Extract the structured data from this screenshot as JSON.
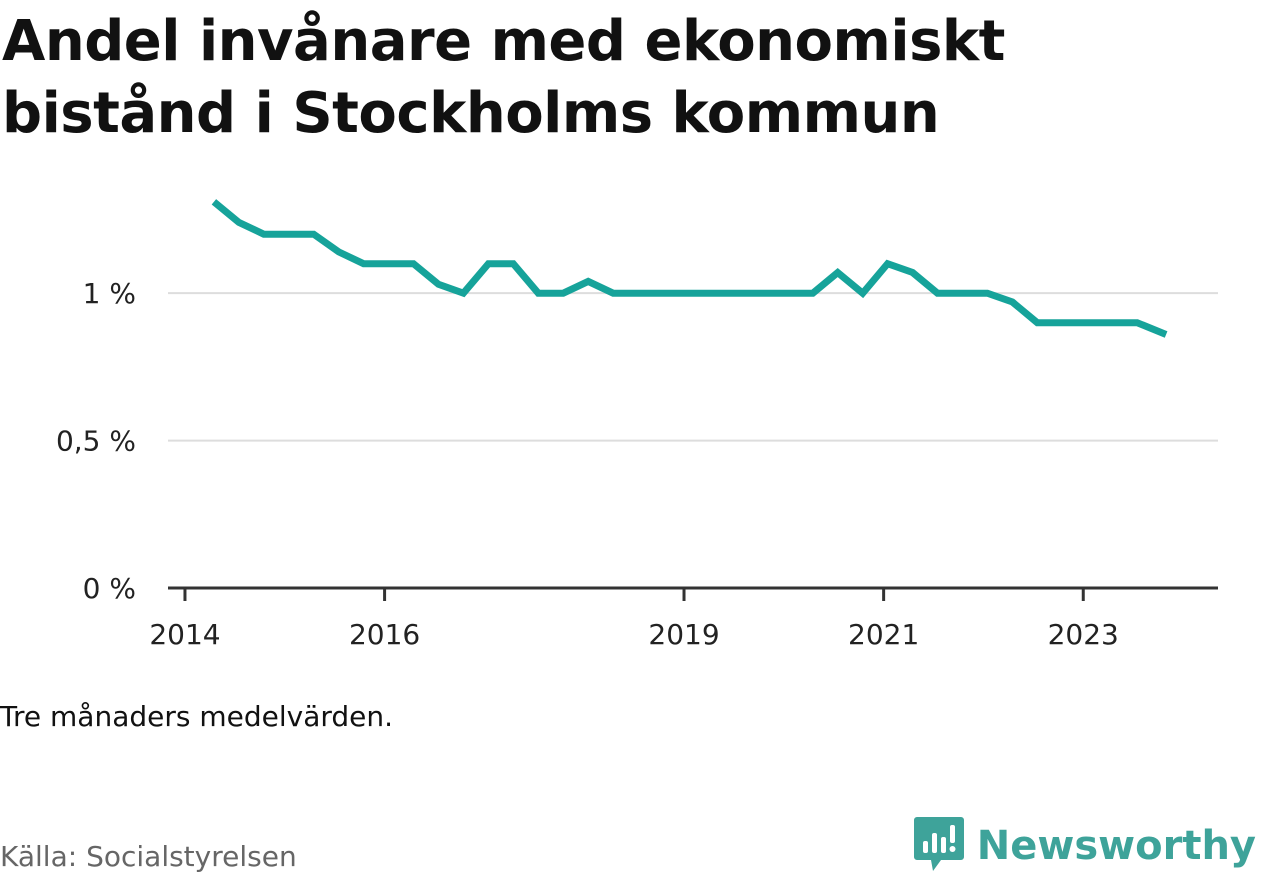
{
  "title": "Andel invånare med ekonomiskt bistånd i Stockholms kommun",
  "note": "Tre månaders medelvärden.",
  "source": "Källa: Socialstyrelsen",
  "brand": {
    "name": "Newsworthy",
    "icon": "newsworthy-logo-icon",
    "color": "#3ea39a"
  },
  "colors": {
    "line": "#16a39a",
    "grid": "#dddddd",
    "axis": "#333333"
  },
  "chart_data": {
    "type": "line",
    "title": "Andel invånare med ekonomiskt bistånd i Stockholms kommun",
    "xlabel": "",
    "ylabel": "",
    "y_ticks": [
      {
        "value": 0,
        "label": "0 %"
      },
      {
        "value": 0.5,
        "label": "0,5 %"
      },
      {
        "value": 1.0,
        "label": "1 %"
      }
    ],
    "x_ticks": [
      {
        "value": 2014.0,
        "label": "2014"
      },
      {
        "value": 2016.0,
        "label": "2016"
      },
      {
        "value": 2019.0,
        "label": "2019"
      },
      {
        "value": 2021.0,
        "label": "2021"
      },
      {
        "value": 2023.0,
        "label": "2023"
      }
    ],
    "ylim": [
      0,
      1.35
    ],
    "xlim": [
      2013.83,
      2024.35
    ],
    "grid": true,
    "series": [
      {
        "values": [
          {
            "x": 2014.29,
            "y": 1.31
          },
          {
            "x": 2014.54,
            "y": 1.24
          },
          {
            "x": 2014.79,
            "y": 1.2
          },
          {
            "x": 2015.04,
            "y": 1.2
          },
          {
            "x": 2015.29,
            "y": 1.2
          },
          {
            "x": 2015.54,
            "y": 1.14
          },
          {
            "x": 2015.79,
            "y": 1.1
          },
          {
            "x": 2016.04,
            "y": 1.1
          },
          {
            "x": 2016.29,
            "y": 1.1
          },
          {
            "x": 2016.54,
            "y": 1.03
          },
          {
            "x": 2016.79,
            "y": 1.0
          },
          {
            "x": 2017.04,
            "y": 1.1
          },
          {
            "x": 2017.29,
            "y": 1.1
          },
          {
            "x": 2017.54,
            "y": 1.0
          },
          {
            "x": 2017.79,
            "y": 1.0
          },
          {
            "x": 2018.04,
            "y": 1.04
          },
          {
            "x": 2018.29,
            "y": 1.0
          },
          {
            "x": 2018.54,
            "y": 1.0
          },
          {
            "x": 2018.79,
            "y": 1.0
          },
          {
            "x": 2019.04,
            "y": 1.0
          },
          {
            "x": 2019.29,
            "y": 1.0
          },
          {
            "x": 2019.54,
            "y": 1.0
          },
          {
            "x": 2019.79,
            "y": 1.0
          },
          {
            "x": 2020.04,
            "y": 1.0
          },
          {
            "x": 2020.29,
            "y": 1.0
          },
          {
            "x": 2020.54,
            "y": 1.07
          },
          {
            "x": 2020.79,
            "y": 1.0
          },
          {
            "x": 2021.04,
            "y": 1.1
          },
          {
            "x": 2021.29,
            "y": 1.07
          },
          {
            "x": 2021.54,
            "y": 1.0
          },
          {
            "x": 2021.79,
            "y": 1.0
          },
          {
            "x": 2022.04,
            "y": 1.0
          },
          {
            "x": 2022.29,
            "y": 0.97
          },
          {
            "x": 2022.54,
            "y": 0.9
          },
          {
            "x": 2022.79,
            "y": 0.9
          },
          {
            "x": 2023.04,
            "y": 0.9
          },
          {
            "x": 2023.29,
            "y": 0.9
          },
          {
            "x": 2023.54,
            "y": 0.9
          },
          {
            "x": 2023.83,
            "y": 0.86
          }
        ]
      }
    ]
  }
}
